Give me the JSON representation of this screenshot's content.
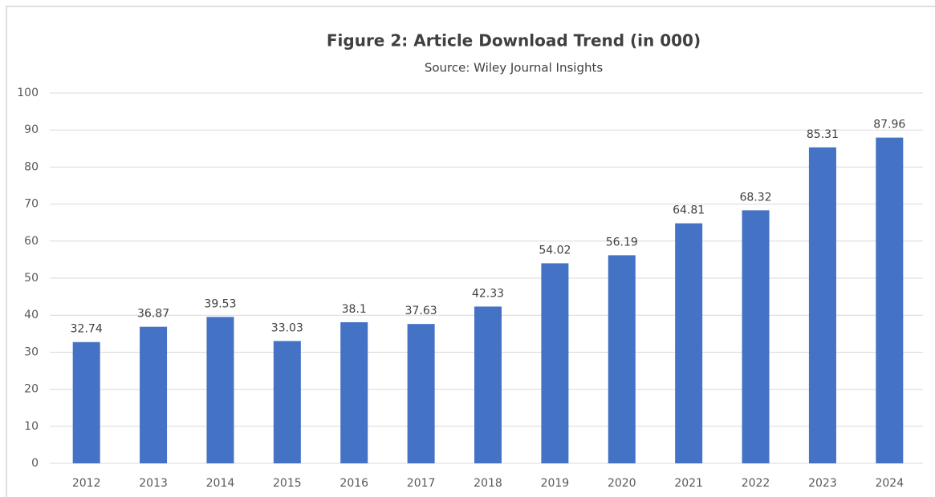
{
  "chart_data": {
    "type": "bar",
    "title": "Figure 2: Article Download Trend (in 000)",
    "subtitle": "Source: Wiley Journal Insights",
    "categories": [
      "2012",
      "2013",
      "2014",
      "2015",
      "2016",
      "2017",
      "2018",
      "2019",
      "2020",
      "2021",
      "2022",
      "2023",
      "2024"
    ],
    "values": [
      32.74,
      36.87,
      39.53,
      33.03,
      38.1,
      37.63,
      42.33,
      54.02,
      56.19,
      64.81,
      68.32,
      85.31,
      87.96
    ],
    "color": "#4472c4",
    "ylim": [
      0,
      100
    ],
    "yticks": [
      0,
      10,
      20,
      30,
      40,
      50,
      60,
      70,
      80,
      90,
      100
    ],
    "grid": true
  }
}
